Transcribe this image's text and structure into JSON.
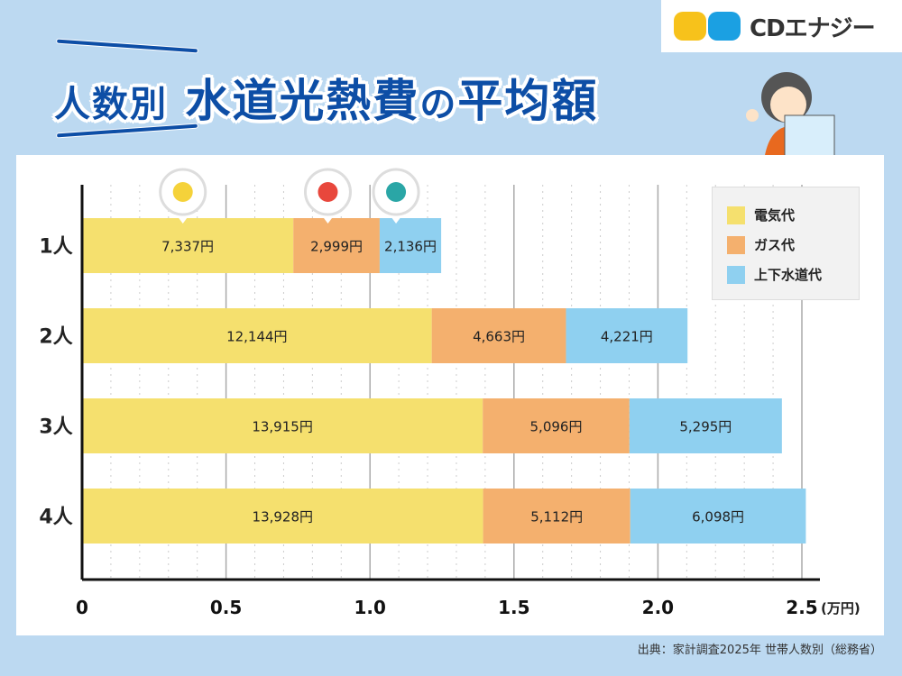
{
  "logo": {
    "text": "CDエナジー"
  },
  "title": {
    "part1": "人数別",
    "part2": "水道光熱費",
    "part3": "の",
    "part4": "平均額"
  },
  "source": "出典：家計調査2025年 世帯人数別（総務省）",
  "colors": {
    "electricity": "#f5e06e",
    "gas": "#f4b06e",
    "water": "#8fd0f0",
    "title": "#0d4ea6"
  },
  "chart_data": {
    "type": "bar",
    "orientation": "horizontal",
    "stacked": true,
    "categories": [
      "1人",
      "2人",
      "3人",
      "4人"
    ],
    "series": [
      {
        "name": "電気代",
        "values": [
          7337,
          12144,
          13915,
          13928
        ],
        "labels": [
          "7,337円",
          "12,144円",
          "13,915円",
          "13,928円"
        ]
      },
      {
        "name": "ガス代",
        "values": [
          2999,
          4663,
          5096,
          5112
        ],
        "labels": [
          "2,999円",
          "4,663円",
          "5,096円",
          "5,112円"
        ]
      },
      {
        "name": "上下水道代",
        "values": [
          2136,
          4221,
          5295,
          6098
        ],
        "labels": [
          "2,136円",
          "4,221円",
          "5,295円",
          "6,098円"
        ]
      }
    ],
    "xticks": [
      "0",
      "0.5",
      "1.0",
      "1.5",
      "2.0",
      "2.5"
    ],
    "xunit": "(万円)",
    "xlim": [
      0,
      25000
    ],
    "grid": true,
    "legend": "top-right",
    "icons": [
      "lightbulb-icon",
      "flame-icon",
      "water-drop-icon"
    ]
  }
}
